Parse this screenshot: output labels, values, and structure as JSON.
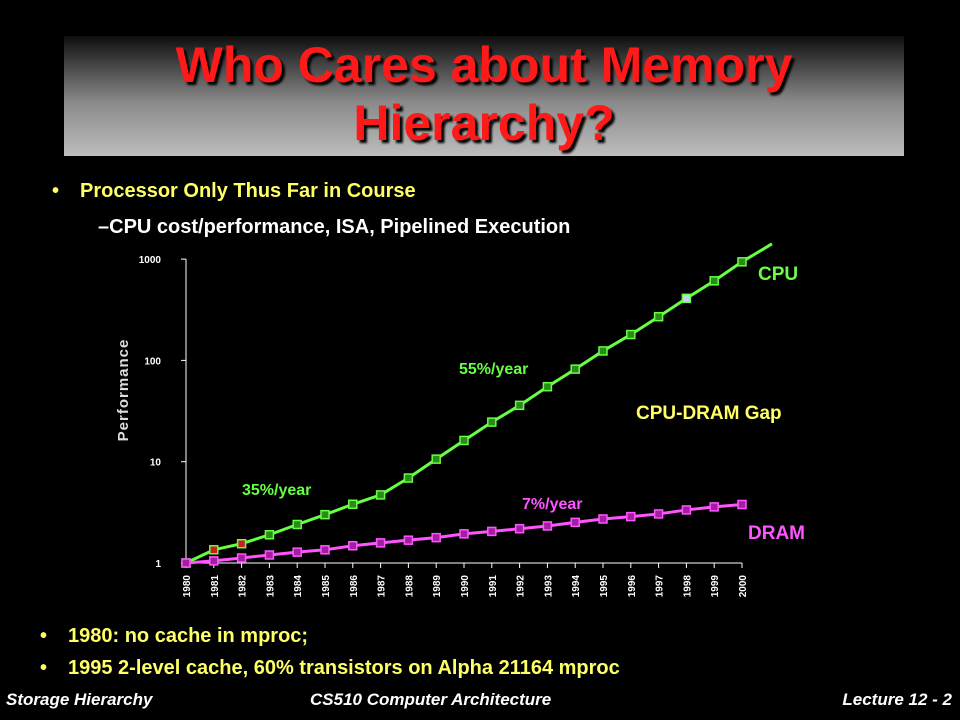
{
  "slide": {
    "title": "Who Cares about Memory Hierarchy?",
    "bullet1": "Processor Only Thus Far in Course",
    "sub_bullet": "CPU cost/performance, ISA, Pipelined Execution",
    "bullet2": "1980: no cache in mproc;",
    "bullet3": "1995 2-level cache, 60% transistors on Alpha 21164  mproc",
    "bullet_marker": "•",
    "dash_marker": "–"
  },
  "footer": {
    "left": "Storage Hierarchy",
    "center": "CS510 Computer Architecture",
    "right": "Lecture 12 - 2"
  },
  "chart_data": {
    "type": "line",
    "ylabel": "Performance",
    "yscale": "log",
    "ylim": [
      1,
      1000
    ],
    "yticks": [
      "1",
      "10",
      "100",
      "1000"
    ],
    "categories": [
      "1980",
      "1981",
      "1982",
      "1983",
      "1984",
      "1985",
      "1986",
      "1987",
      "1988",
      "1989",
      "1990",
      "1991",
      "1992",
      "1993",
      "1994",
      "1995",
      "1996",
      "1997",
      "1998",
      "1999",
      "2000"
    ],
    "series": [
      {
        "name": "CPU",
        "color": "#66ff44",
        "values": [
          1,
          1.35,
          1.55,
          1.9,
          2.4,
          3.0,
          3.8,
          4.7,
          6.9,
          10.6,
          16.2,
          24.6,
          36.0,
          55.0,
          82.0,
          124.0,
          180.0,
          270.0,
          410.0,
          610.0,
          940.0
        ]
      },
      {
        "name": "DRAM",
        "color": "#ff55ff",
        "values": [
          1,
          1.05,
          1.12,
          1.2,
          1.28,
          1.35,
          1.48,
          1.58,
          1.68,
          1.78,
          1.94,
          2.05,
          2.18,
          2.32,
          2.52,
          2.72,
          2.87,
          3.05,
          3.34,
          3.58,
          3.78
        ]
      }
    ],
    "annotations": [
      {
        "text": "35%/year",
        "color": "#66ff44"
      },
      {
        "text": "55%/year",
        "color": "#66ff44"
      },
      {
        "text": "7%/year",
        "color": "#ff55ff"
      },
      {
        "text": "CPU-DRAM Gap",
        "color": "#ffff66"
      },
      {
        "text": "CPU",
        "color": "#66ff44"
      },
      {
        "text": "DRAM",
        "color": "#ff55ff"
      }
    ]
  }
}
